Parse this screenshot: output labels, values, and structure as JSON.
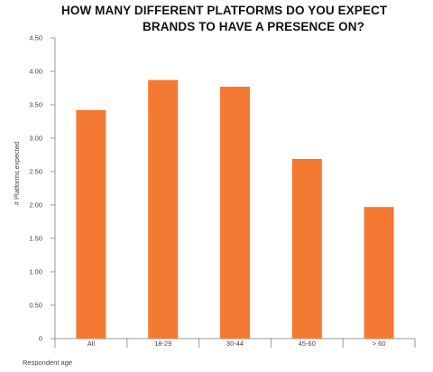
{
  "chart_data": {
    "type": "bar",
    "title_line1": "HOW MANY DIFFERENT PLATFORMS DO YOU EXPECT",
    "title_line2": "BRANDS TO HAVE A PRESENCE ON?",
    "xlabel": "Respondent age",
    "ylabel": "# Platforms expected",
    "categories": [
      "All",
      "18-29",
      "30-44",
      "45-60",
      "> 60"
    ],
    "values": [
      3.42,
      3.87,
      3.77,
      2.69,
      1.97
    ],
    "ylim": [
      0,
      4.5
    ],
    "yticks": [
      "0",
      "0.50",
      "1.00",
      "1.50",
      "2.00",
      "2.50",
      "3.00",
      "3.50",
      "4.00",
      "4.50"
    ],
    "grid": false,
    "bar_color": "#f47a33"
  }
}
